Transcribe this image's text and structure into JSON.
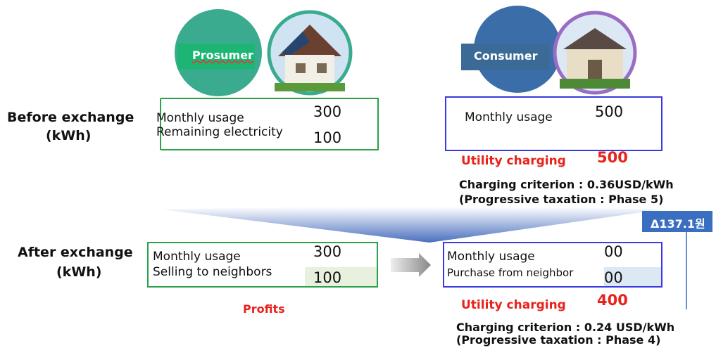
{
  "prosumer": {
    "label": "Prosumer"
  },
  "consumer": {
    "label": "Consumer"
  },
  "before": {
    "title": "Before exchange",
    "unit": "(kWh)",
    "prosumer": {
      "rows": [
        {
          "label": "Monthly usage",
          "value": "300"
        },
        {
          "label": "Remaining electricity",
          "value": "100"
        }
      ]
    },
    "consumer": {
      "rows": [
        {
          "label": "Monthly usage",
          "value": "500"
        }
      ],
      "utility_label": "Utility charging",
      "utility_value": "500",
      "criterion": "Charging criterion : 0.36USD/kWh",
      "taxation": "(Progressive taxation : Phase 5)"
    }
  },
  "difference": "Δ137.1원",
  "after": {
    "title": "After exchange",
    "unit": "(kWh)",
    "prosumer": {
      "rows": [
        {
          "label": "Monthly usage",
          "value": "300"
        },
        {
          "label": "Selling to neighbors",
          "value": "100"
        }
      ],
      "note": "Profits"
    },
    "consumer": {
      "rows": [
        {
          "label": "Monthly usage",
          "value": "00"
        },
        {
          "label": "Purchase from neighbor",
          "value": "00"
        }
      ],
      "utility_label": "Utility charging",
      "utility_value": "400",
      "criterion": "Charging criterion : 0.24 USD/kWh",
      "taxation": "(Progressive taxation : Phase 4)"
    }
  }
}
